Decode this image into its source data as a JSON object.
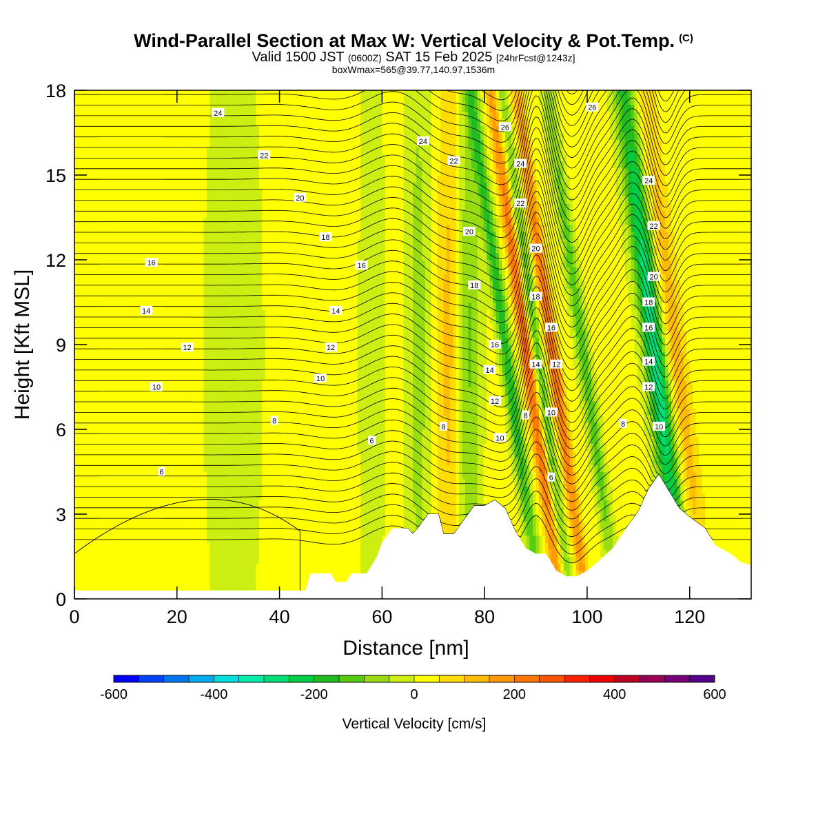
{
  "header": {
    "title": "Wind-Parallel Section at Max W: Vertical Velocity & Pot.Temp.",
    "copyright": "(C)",
    "valid_a": "Valid 1500 JST",
    "valid_b": "(0600Z)",
    "valid_c": "SAT 15 Feb 2025",
    "valid_d": "[24hrFcst@1243z]",
    "boxinfo": "boxWmax=565@39.77,140.97,1536m"
  },
  "chart_data": {
    "type": "heatmap",
    "xlabel": "Distance [nm]",
    "ylabel": "Height [Kft MSL]",
    "xlim": [
      0,
      132
    ],
    "ylim": [
      0,
      18
    ],
    "xticks": [
      "0",
      "20",
      "40",
      "60",
      "80",
      "100",
      "120"
    ],
    "yticks": [
      "0",
      "3",
      "6",
      "9",
      "12",
      "15",
      "18"
    ],
    "colorbar": {
      "label": "Vertical Velocity [cm/s]",
      "range": [
        -600,
        600
      ],
      "step": 50,
      "tick_labels": [
        "-600",
        "-400",
        "-200",
        "0",
        "200",
        "400",
        "600"
      ],
      "colors": [
        "#0000ff",
        "#0044ff",
        "#0077ee",
        "#00aaee",
        "#00dddd",
        "#00eeaa",
        "#00dd77",
        "#00cc44",
        "#22bb22",
        "#55cc11",
        "#99dd11",
        "#ccee11",
        "#ffff00",
        "#ffdd00",
        "#ffbb00",
        "#ff9900",
        "#ff7700",
        "#ff5500",
        "#ff2200",
        "#ee0000",
        "#bb0022",
        "#990055",
        "#770077",
        "#550088"
      ]
    },
    "terrain": [
      [
        0,
        0.3
      ],
      [
        40,
        0.3
      ],
      [
        45,
        0.3
      ],
      [
        46,
        0.9
      ],
      [
        50,
        0.9
      ],
      [
        51,
        0.6
      ],
      [
        53,
        0.6
      ],
      [
        54,
        0.9
      ],
      [
        57,
        0.9
      ],
      [
        59,
        1.5
      ],
      [
        60,
        2.0
      ],
      [
        62,
        2.5
      ],
      [
        65,
        2.5
      ],
      [
        66,
        2.3
      ],
      [
        67,
        2.5
      ],
      [
        69,
        3.0
      ],
      [
        71,
        3.0
      ],
      [
        72,
        2.3
      ],
      [
        74,
        2.3
      ],
      [
        76,
        2.8
      ],
      [
        78,
        3.3
      ],
      [
        80,
        3.3
      ],
      [
        82,
        3.5
      ],
      [
        84,
        3.2
      ],
      [
        86,
        2.4
      ],
      [
        88,
        1.8
      ],
      [
        90,
        1.6
      ],
      [
        92,
        1.6
      ],
      [
        94,
        1.0
      ],
      [
        96,
        0.8
      ],
      [
        98,
        0.8
      ],
      [
        100,
        1.0
      ],
      [
        102,
        1.3
      ],
      [
        105,
        1.8
      ],
      [
        108,
        2.6
      ],
      [
        110,
        3.1
      ],
      [
        112,
        3.9
      ],
      [
        114,
        4.4
      ],
      [
        116,
        3.8
      ],
      [
        118,
        3.2
      ],
      [
        120,
        2.9
      ],
      [
        123,
        2.5
      ],
      [
        125,
        1.9
      ],
      [
        128,
        1.6
      ],
      [
        130,
        1.3
      ],
      [
        132,
        1.2
      ]
    ],
    "vertical_velocity_features": [
      {
        "x": 88,
        "w": 250,
        "kind": "updraft",
        "peak_w_cm_s": 565
      },
      {
        "x": 93,
        "w": 220,
        "kind": "updraft"
      },
      {
        "x": 84,
        "w": -200,
        "kind": "downdraft"
      },
      {
        "x": 90,
        "w": -150,
        "kind": "downdraft"
      },
      {
        "x": 99,
        "w": -150,
        "kind": "downdraft"
      },
      {
        "x": 113,
        "w": -300,
        "kind": "downdraft"
      },
      {
        "x": 117,
        "w": 120,
        "kind": "updraft"
      },
      {
        "x": 77,
        "w": -120,
        "kind": "downdraft"
      },
      {
        "x": 73,
        "w": 100,
        "kind": "updraft"
      },
      {
        "x": 67,
        "w": -90,
        "kind": "downdraft"
      },
      {
        "x": 58,
        "w": -60,
        "kind": "downdraft"
      },
      {
        "x": 31,
        "w": -40,
        "kind": "downdraft"
      }
    ],
    "potential_temperature_contour_labels": [
      {
        "text": "24",
        "x": 28,
        "y": 17.2
      },
      {
        "text": "22",
        "x": 37,
        "y": 15.7
      },
      {
        "text": "20",
        "x": 44,
        "y": 14.2
      },
      {
        "text": "18",
        "x": 49,
        "y": 12.8
      },
      {
        "text": "16",
        "x": 15,
        "y": 11.9
      },
      {
        "text": "14",
        "x": 14,
        "y": 10.2
      },
      {
        "text": "12",
        "x": 22,
        "y": 8.9
      },
      {
        "text": "10",
        "x": 16,
        "y": 7.5
      },
      {
        "text": "8",
        "x": 39,
        "y": 6.3
      },
      {
        "text": "6",
        "x": 17,
        "y": 4.5
      },
      {
        "text": "16",
        "x": 56,
        "y": 11.8
      },
      {
        "text": "14",
        "x": 51,
        "y": 10.2
      },
      {
        "text": "12",
        "x": 50,
        "y": 8.9
      },
      {
        "text": "10",
        "x": 48,
        "y": 7.8
      },
      {
        "text": "6",
        "x": 58,
        "y": 5.6
      },
      {
        "text": "8",
        "x": 72,
        "y": 6.1
      },
      {
        "text": "24",
        "x": 68,
        "y": 16.2
      },
      {
        "text": "22",
        "x": 74,
        "y": 15.5
      },
      {
        "text": "20",
        "x": 77,
        "y": 13.0
      },
      {
        "text": "18",
        "x": 78,
        "y": 11.1
      },
      {
        "text": "16",
        "x": 82,
        "y": 9.0
      },
      {
        "text": "14",
        "x": 81,
        "y": 8.1
      },
      {
        "text": "12",
        "x": 82,
        "y": 7.0
      },
      {
        "text": "10",
        "x": 83,
        "y": 5.7
      },
      {
        "text": "26",
        "x": 84,
        "y": 16.7
      },
      {
        "text": "24",
        "x": 87,
        "y": 15.4
      },
      {
        "text": "22",
        "x": 87,
        "y": 14.0
      },
      {
        "text": "20",
        "x": 90,
        "y": 12.4
      },
      {
        "text": "18",
        "x": 90,
        "y": 10.7
      },
      {
        "text": "16",
        "x": 93,
        "y": 9.6
      },
      {
        "text": "14",
        "x": 90,
        "y": 8.3
      },
      {
        "text": "12",
        "x": 94,
        "y": 8.3
      },
      {
        "text": "8",
        "x": 88,
        "y": 6.5
      },
      {
        "text": "10",
        "x": 93,
        "y": 6.6
      },
      {
        "text": "6",
        "x": 93,
        "y": 4.3
      },
      {
        "text": "26",
        "x": 101,
        "y": 17.4
      },
      {
        "text": "24",
        "x": 112,
        "y": 14.8
      },
      {
        "text": "22",
        "x": 113,
        "y": 13.2
      },
      {
        "text": "20",
        "x": 113,
        "y": 11.4
      },
      {
        "text": "18",
        "x": 112,
        "y": 10.5
      },
      {
        "text": "16",
        "x": 112,
        "y": 9.6
      },
      {
        "text": "14",
        "x": 112,
        "y": 8.4
      },
      {
        "text": "12",
        "x": 112,
        "y": 7.5
      },
      {
        "text": "10",
        "x": 114,
        "y": 6.1
      },
      {
        "text": "8",
        "x": 107,
        "y": 6.2
      }
    ]
  }
}
